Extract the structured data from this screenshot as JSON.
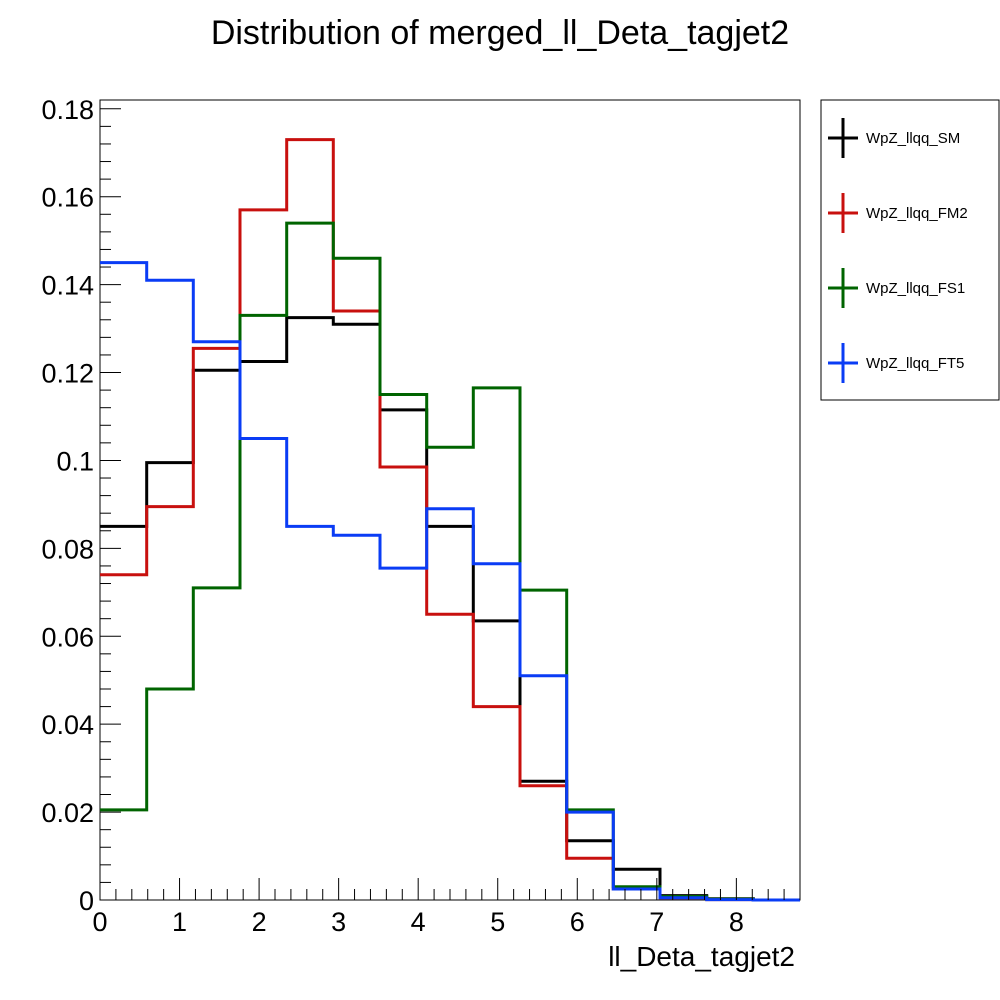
{
  "chart_data": {
    "type": "histogram-step",
    "title": "Distribution of merged_ll_Deta_tagjet2",
    "xlabel": "ll_Deta_tagjet2",
    "ylabel": "",
    "xlim": [
      0,
      8.8
    ],
    "ylim": [
      0,
      0.182
    ],
    "bin_edges": [
      0,
      0.587,
      1.173,
      1.76,
      2.347,
      2.933,
      3.52,
      4.107,
      4.693,
      5.28,
      5.867,
      6.453,
      7.04,
      7.627,
      8.213,
      8.8
    ],
    "x_ticks": [
      {
        "value": 0,
        "label": "0"
      },
      {
        "value": 1,
        "label": "1"
      },
      {
        "value": 2,
        "label": "2"
      },
      {
        "value": 3,
        "label": "3"
      },
      {
        "value": 4,
        "label": "4"
      },
      {
        "value": 5,
        "label": "5"
      },
      {
        "value": 6,
        "label": "6"
      },
      {
        "value": 7,
        "label": "7"
      },
      {
        "value": 8,
        "label": "8"
      }
    ],
    "y_ticks": [
      {
        "value": 0,
        "label": "0"
      },
      {
        "value": 0.02,
        "label": "0.02"
      },
      {
        "value": 0.04,
        "label": "0.04"
      },
      {
        "value": 0.06,
        "label": "0.06"
      },
      {
        "value": 0.08,
        "label": "0.08"
      },
      {
        "value": 0.1,
        "label": "0.1"
      },
      {
        "value": 0.12,
        "label": "0.12"
      },
      {
        "value": 0.14,
        "label": "0.14"
      },
      {
        "value": 0.16,
        "label": "0.16"
      },
      {
        "value": 0.18,
        "label": "0.18"
      }
    ],
    "grid": false,
    "legend_position": "right",
    "series": [
      {
        "name": "WpZ_llqq_SM",
        "color": "#000000",
        "values": [
          0.085,
          0.0995,
          0.1205,
          0.1225,
          0.1325,
          0.131,
          0.1115,
          0.085,
          0.0635,
          0.027,
          0.0135,
          0.007,
          0.001,
          0.0003,
          0
        ]
      },
      {
        "name": "WpZ_llqq_FM2",
        "color": "#c8100e",
        "values": [
          0.074,
          0.0895,
          0.1255,
          0.157,
          0.173,
          0.134,
          0.0985,
          0.065,
          0.044,
          0.026,
          0.0095,
          0.0025,
          0.0005,
          0.0001,
          0
        ]
      },
      {
        "name": "WpZ_llqq_FS1",
        "color": "#006400",
        "values": [
          0.0205,
          0.048,
          0.071,
          0.133,
          0.154,
          0.146,
          0.115,
          0.103,
          0.1165,
          0.0705,
          0.0205,
          0.003,
          0.0008,
          0.0002,
          0
        ]
      },
      {
        "name": "WpZ_llqq_FT5",
        "color": "#0a3cf5",
        "values": [
          0.145,
          0.141,
          0.127,
          0.105,
          0.085,
          0.083,
          0.0755,
          0.089,
          0.0765,
          0.051,
          0.02,
          0.0025,
          0.0005,
          0.0001,
          0
        ]
      }
    ]
  }
}
